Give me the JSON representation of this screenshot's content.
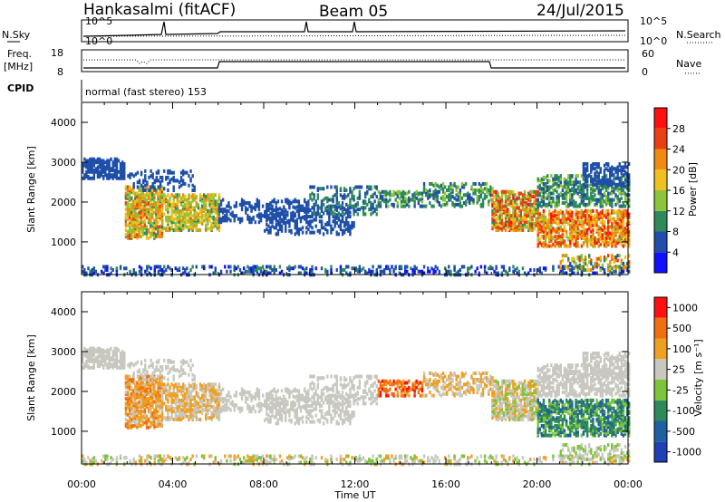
{
  "header": {
    "station": "Hankasalmi (fitACF)",
    "beam": "Beam 05",
    "date": "24/Jul/2015"
  },
  "aux": {
    "nsky_label": "N.Sky",
    "nsky_top": "10^5",
    "nsky_bottom": "10^0",
    "nsearch_label": "N.Search",
    "nsearch_top": "10^5",
    "nsearch_bottom": "10^0",
    "freq_label": "Freq.",
    "freq_unit": "[MHz]",
    "freq_top": "18",
    "freq_bottom": "8",
    "nave_label": "Nave",
    "nave_top": "60",
    "nave_bottom": "0",
    "cpid_label": "CPID",
    "cpid_value": "normal (fast stereo) 153"
  },
  "colors": {
    "power": [
      "#1010ff",
      "#1f4fa8",
      "#2f8a5a",
      "#8cc43c",
      "#f0c020",
      "#f08a10",
      "#e84010",
      "#ff1010"
    ],
    "velocity": [
      "#1f3fb4",
      "#2060a0",
      "#2f8a5a",
      "#7cc43a",
      "#c8c8c0",
      "#f0a020",
      "#f07010",
      "#ff1010"
    ]
  },
  "chart_data": [
    {
      "type": "heatmap",
      "name": "power",
      "xlabel": "",
      "ylabel": "Slant Range [km]",
      "xlim": [
        "00:00",
        "24:00"
      ],
      "ylim": [
        180,
        4500
      ],
      "y_ticks": [
        "1000",
        "2000",
        "3000",
        "4000"
      ],
      "colorbar": {
        "label": "Power [dB]",
        "ticks": [
          "4",
          "8",
          "12",
          "16",
          "20",
          "24",
          "28"
        ],
        "range": [
          0,
          30
        ]
      }
    },
    {
      "type": "heatmap",
      "name": "velocity",
      "xlabel": "Time UT",
      "ylabel": "Slant Range [km]",
      "xlim": [
        "00:00",
        "24:00"
      ],
      "ylim": [
        180,
        4500
      ],
      "x_ticks": [
        "00:00",
        "04:00",
        "08:00",
        "12:00",
        "16:00",
        "20:00",
        "00:00"
      ],
      "y_ticks": [
        "1000",
        "2000",
        "3000",
        "4000"
      ],
      "colorbar": {
        "label": "Velocity [m s⁻¹]",
        "ticks": [
          "1000",
          "500",
          "100",
          "25",
          "-25",
          "-100",
          "-500",
          "-1000"
        ]
      }
    }
  ]
}
